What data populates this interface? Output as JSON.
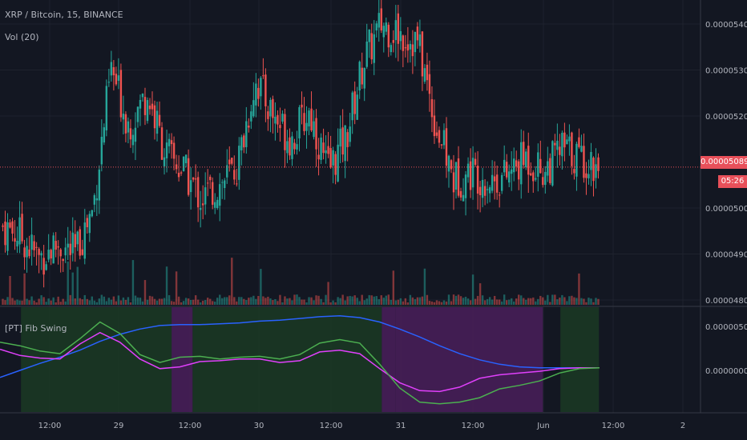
{
  "header": {
    "symbol_title": "XRP / Bitcoin, 15, BINANCE",
    "volume_label": "Vol (20)"
  },
  "indicator": {
    "title": "[PT] Fib Swing"
  },
  "price_axis": {
    "ticks": [
      "0.00005400",
      "0.00005300",
      "0.00005200",
      "0.00005000",
      "0.00004900",
      "0.00004800"
    ],
    "tick_values": [
      5.4e-05,
      5.3e-05,
      5.2e-05,
      5e-05,
      4.9e-05,
      4.8e-05
    ],
    "current_price": "0.00005089",
    "current_price_value": 5.089e-05,
    "countdown": "05:26"
  },
  "indicator_axis": {
    "ticks": [
      "0.00000500",
      "0.00000000"
    ],
    "tick_values": [
      5e-06,
      0.0
    ]
  },
  "time_axis": {
    "ticks": [
      "12:00",
      "29",
      "12:00",
      "30",
      "12:00",
      "31",
      "12:00",
      "Jun",
      "12:00",
      "2"
    ]
  },
  "colors": {
    "background": "#131722",
    "up": "#26a69a",
    "down": "#ef5350",
    "green_line": "#4caf50",
    "magenta_line": "#e040fb",
    "blue_line": "#2962ff",
    "green_band": "#1b3a23",
    "purple_band": "#4a1f5a",
    "price_line": "#e8505a"
  },
  "chart_data": {
    "type": "candlestick",
    "series": [
      {
        "name": "XRP / Bitcoin, 15, BINANCE",
        "close": [
          4.96e-05,
          4.94e-05,
          4.89e-05,
          4.92e-05,
          4.9e-05,
          5e-05,
          5.3e-05,
          5.18e-05,
          5.25e-05,
          5.12e-05,
          5.08e-05,
          5.02e-05,
          5.05e-05,
          5.09e-05,
          5.28e-05,
          5.2e-05,
          5.15e-05,
          5.21e-05,
          5.08e-05,
          5.15e-05,
          5.32e-05,
          5.4e-05,
          5.38e-05,
          5.36e-05,
          5.18e-05,
          5.06e-05,
          5.08e-05,
          5.06e-05,
          5.07e-05,
          5.11e-05,
          5.08e-05,
          5.13e-05,
          5.11e-05,
          5.09e-05
        ]
      },
      {
        "name": "Vol (20)"
      }
    ],
    "indicator": {
      "name": "[PT] Fib Swing",
      "green": [
        3.2e-06,
        2.8e-06,
        2.2e-06,
        1.9e-06,
        3.6e-06,
        5.5e-06,
        4.2e-06,
        1.8e-06,
        9e-07,
        1.5e-06,
        1.6e-06,
        1.3e-06,
        1.5e-06,
        1.6e-06,
        1.3e-06,
        1.8e-06,
        3.1e-06,
        3.5e-06,
        3.1e-06,
        7e-07,
        -2e-06,
        -3.6e-06,
        -3.8e-06,
        -3.6e-06,
        -3.1e-06,
        -2.1e-06,
        -1.7e-06,
        -1.2e-06,
        -3e-07,
        2e-07,
        3e-07
      ],
      "magenta": [
        2.4e-06,
        1.7e-06,
        1.4e-06,
        1.3e-06,
        3e-06,
        4.3e-06,
        3.2e-06,
        1.3e-06,
        2e-07,
        4e-07,
        1e-06,
        1.1e-06,
        1.3e-06,
        1.3e-06,
        9e-07,
        1.1e-06,
        2.1e-06,
        2.3e-06,
        1.9e-06,
        2e-07,
        -1.4e-06,
        -2.3e-06,
        -2.4e-06,
        -1.9e-06,
        -9e-07,
        -5e-07,
        -3e-07,
        -1e-07,
        2e-07,
        3e-07,
        3e-07
      ],
      "blue": [
        -8e-07,
        0.0,
        8e-07,
        1.5e-06,
        2.3e-06,
        3.3e-06,
        4.1e-06,
        4.7e-06,
        5.1e-06,
        5.2e-06,
        5.2e-06,
        5.3e-06,
        5.4e-06,
        5.6e-06,
        5.7e-06,
        5.9e-06,
        6.1e-06,
        6.2e-06,
        6e-06,
        5.5e-06,
        4.7e-06,
        3.8e-06,
        2.8e-06,
        1.9e-06,
        1.2e-06,
        7e-07,
        4e-07,
        3e-07,
        3e-07,
        3e-07,
        3e-07
      ],
      "bands": [
        {
          "from": 0.03,
          "to": 0.245,
          "color": "green"
        },
        {
          "from": 0.245,
          "to": 0.275,
          "color": "purple"
        },
        {
          "from": 0.275,
          "to": 0.545,
          "color": "green"
        },
        {
          "from": 0.545,
          "to": 0.565,
          "color": "purple"
        },
        {
          "from": 0.565,
          "to": 0.775,
          "color": "purple"
        },
        {
          "from": 0.8,
          "to": 0.855,
          "color": "green"
        }
      ]
    }
  }
}
